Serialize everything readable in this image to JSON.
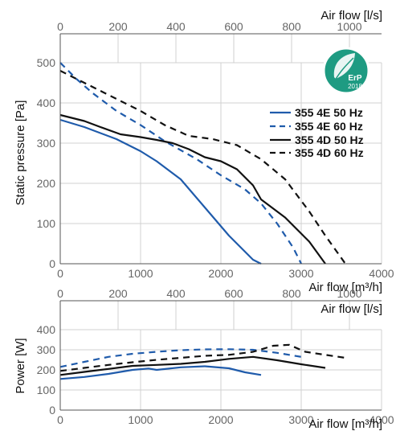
{
  "colors": {
    "blue": "#1f5bab",
    "black": "#111111",
    "grid": "#d0d0d0",
    "logo": "#1e9b82"
  },
  "logo": {
    "text": "ErP",
    "year": "2018",
    "icon": "erp-2018-leaf-icon"
  },
  "chart_data": [
    {
      "type": "line",
      "title": "",
      "xlabel": "Air flow [m³/h]",
      "ylabel": "Static pressure [Pa]",
      "x2label": "Air flow [l/s]",
      "xlim": [
        0,
        4000
      ],
      "ylim": [
        0,
        500
      ],
      "x2lim": [
        0,
        1111
      ],
      "xticks": [
        0,
        1000,
        2000,
        3000,
        4000
      ],
      "yticks": [
        0,
        100,
        200,
        300,
        400,
        500
      ],
      "x2ticks": [
        0,
        200,
        400,
        600,
        800,
        1000
      ],
      "grid": true,
      "legend": "right",
      "series": [
        {
          "name": "355 4E 50 Hz",
          "color": "#1f5bab",
          "dash": "solid",
          "x": [
            0,
            300,
            700,
            1000,
            1200,
            1500,
            1800,
            2100,
            2400,
            2500
          ],
          "y": [
            358,
            340,
            310,
            280,
            255,
            210,
            140,
            70,
            10,
            0
          ]
        },
        {
          "name": "355 4E 60 Hz",
          "color": "#1f5bab",
          "dash": "dashed",
          "x": [
            0,
            200,
            400,
            700,
            1000,
            1300,
            1700,
            2000,
            2300,
            2500,
            2700,
            2900,
            3000
          ],
          "y": [
            500,
            460,
            425,
            380,
            345,
            305,
            260,
            220,
            185,
            150,
            100,
            40,
            0
          ]
        },
        {
          "name": "355 4D 50 Hz",
          "color": "#111111",
          "dash": "solid",
          "x": [
            0,
            300,
            500,
            750,
            1000,
            1200,
            1400,
            1600,
            1800,
            2000,
            2200,
            2400,
            2500,
            2800,
            3100,
            3300
          ],
          "y": [
            370,
            355,
            340,
            322,
            315,
            308,
            300,
            285,
            265,
            255,
            235,
            195,
            160,
            115,
            55,
            0
          ]
        },
        {
          "name": "355 4D 60 Hz",
          "color": "#111111",
          "dash": "dashed",
          "x": [
            0,
            300,
            600,
            1000,
            1300,
            1600,
            1900,
            2200,
            2500,
            2800,
            3100,
            3300,
            3550
          ],
          "y": [
            480,
            450,
            420,
            380,
            345,
            318,
            310,
            295,
            260,
            210,
            130,
            70,
            0
          ]
        }
      ]
    },
    {
      "type": "line",
      "title": "",
      "xlabel": "Air flow [m³/h]",
      "ylabel": "Power [W]",
      "x2label": "Air flow [l/s]",
      "xlim": [
        0,
        4000
      ],
      "ylim": [
        0,
        400
      ],
      "x2lim": [
        0,
        1111
      ],
      "xticks": [
        0,
        1000,
        2000,
        3000,
        4000
      ],
      "yticks": [
        0,
        100,
        200,
        300,
        400
      ],
      "x2ticks": [
        0,
        200,
        400,
        600,
        800,
        1000
      ],
      "grid": true,
      "series": [
        {
          "name": "355 4E 50 Hz",
          "color": "#1f5bab",
          "dash": "solid",
          "x": [
            0,
            300,
            600,
            900,
            1100,
            1200,
            1500,
            1800,
            2100,
            2300,
            2500
          ],
          "y": [
            155,
            165,
            180,
            200,
            207,
            200,
            213,
            218,
            208,
            188,
            175
          ]
        },
        {
          "name": "355 4E 60 Hz",
          "color": "#1f5bab",
          "dash": "dashed",
          "x": [
            0,
            300,
            600,
            900,
            1200,
            1500,
            1800,
            2100,
            2400,
            2700,
            3000
          ],
          "y": [
            215,
            240,
            265,
            280,
            290,
            298,
            302,
            303,
            300,
            285,
            265
          ]
        },
        {
          "name": "355 4D 50 Hz",
          "color": "#111111",
          "dash": "solid",
          "x": [
            0,
            300,
            600,
            900,
            1200,
            1500,
            1800,
            2100,
            2400,
            2700,
            3000,
            3300
          ],
          "y": [
            175,
            190,
            205,
            220,
            225,
            230,
            240,
            255,
            265,
            248,
            228,
            210
          ]
        },
        {
          "name": "355 4D 60 Hz",
          "color": "#111111",
          "dash": "dashed",
          "x": [
            0,
            300,
            600,
            900,
            1200,
            1500,
            1800,
            2100,
            2400,
            2650,
            2850,
            3050,
            3300,
            3550
          ],
          "y": [
            195,
            210,
            225,
            238,
            250,
            260,
            270,
            275,
            290,
            320,
            325,
            290,
            275,
            260
          ]
        }
      ]
    }
  ]
}
